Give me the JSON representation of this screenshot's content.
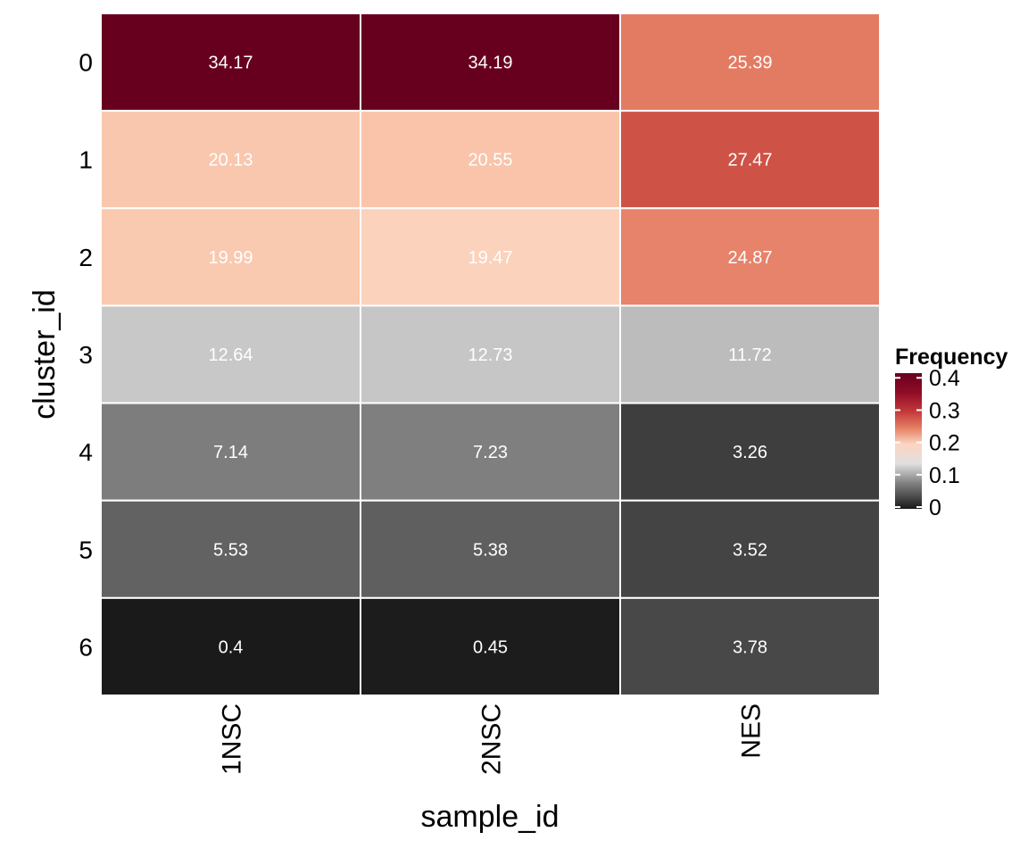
{
  "chart_data": {
    "type": "heatmap",
    "title": "",
    "xlabel": "sample_id",
    "ylabel": "cluster_id",
    "x_categories": [
      "1NSC",
      "2NSC",
      "NES"
    ],
    "y_categories": [
      "0",
      "1",
      "2",
      "3",
      "4",
      "5",
      "6"
    ],
    "values": [
      [
        34.17,
        34.19,
        25.39
      ],
      [
        20.13,
        20.55,
        27.47
      ],
      [
        19.99,
        19.47,
        24.87
      ],
      [
        12.64,
        12.73,
        11.72
      ],
      [
        7.14,
        7.23,
        3.26
      ],
      [
        5.53,
        5.38,
        3.52
      ],
      [
        0.4,
        0.45,
        3.78
      ]
    ],
    "cell_labels": [
      [
        "34.17",
        "34.19",
        "25.39"
      ],
      [
        "20.13",
        "20.55",
        "27.47"
      ],
      [
        "19.99",
        "19.47",
        "24.87"
      ],
      [
        "12.64",
        "12.73",
        "11.72"
      ],
      [
        "7.14",
        "7.23",
        "3.26"
      ],
      [
        "5.53",
        "5.38",
        "3.52"
      ],
      [
        "0.4",
        "0.45",
        "3.78"
      ]
    ],
    "legend": {
      "title": "Frequency",
      "ticks": [
        "0.4",
        "0.3",
        "0.2",
        "0.1",
        "0"
      ],
      "tick_values": [
        0.4,
        0.3,
        0.2,
        0.1,
        0
      ],
      "range": [
        0,
        0.42
      ],
      "placement": "right"
    },
    "colorscale": [
      {
        "v": 0.0,
        "color": "#1a1a1a"
      },
      {
        "v": 0.08,
        "color": "#828282"
      },
      {
        "v": 0.14,
        "color": "#e0e0e0"
      },
      {
        "v": 0.2,
        "color": "#fcd4c0"
      },
      {
        "v": 0.25,
        "color": "#e58064"
      },
      {
        "v": 0.3,
        "color": "#c43a3c"
      },
      {
        "v": 0.36,
        "color": "#8f0c27"
      },
      {
        "v": 0.42,
        "color": "#67001f"
      }
    ],
    "cell_colors": [
      [
        "#67001f",
        "#67001f",
        "#e37b62"
      ],
      [
        "#f9c7ad",
        "#f9c4aa",
        "#cf5246"
      ],
      [
        "#f9c9b0",
        "#fbd2bc",
        "#e6836a"
      ],
      [
        "#c8c8c8",
        "#c6c6c6",
        "#bcbcbc"
      ],
      [
        "#7d7d7d",
        "#7f7f7f",
        "#3e3e3e"
      ],
      [
        "#626262",
        "#5f5f5f",
        "#444444"
      ],
      [
        "#1a1a1a",
        "#1c1c1c",
        "#484848"
      ]
    ],
    "label_color": "#ffffff",
    "grid_line_color": "#ffffff"
  }
}
